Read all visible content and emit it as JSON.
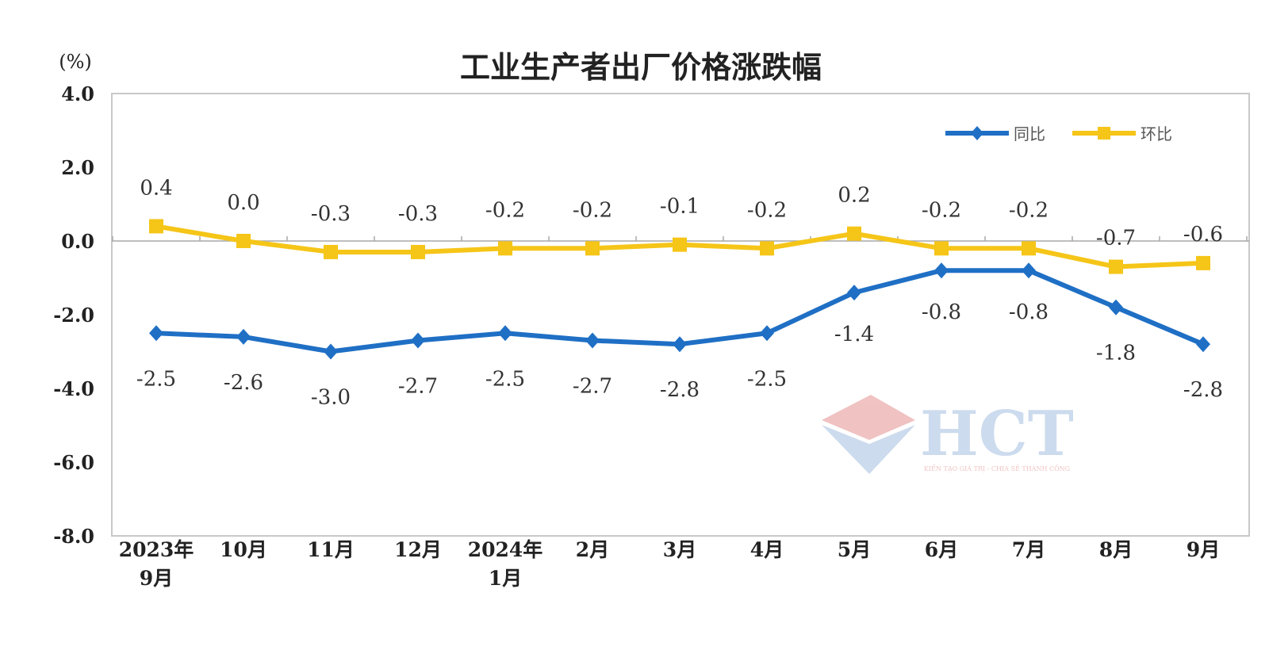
{
  "chart_data": {
    "type": "line",
    "title": "工业生产者出厂价格涨跌幅",
    "ylabel": "(%)",
    "xlabel": "",
    "ylim": [
      -8.0,
      4.0
    ],
    "yticks": [
      "4.0",
      "2.0",
      "0.0",
      "-2.0",
      "-4.0",
      "-6.0",
      "-8.0"
    ],
    "ytick_values": [
      4,
      2,
      0,
      -2,
      -4,
      -6,
      -8
    ],
    "categories": [
      [
        "2023年",
        "9月"
      ],
      [
        "10月"
      ],
      [
        "11月"
      ],
      [
        "12月"
      ],
      [
        "2024年",
        "1月"
      ],
      [
        "2月"
      ],
      [
        "3月"
      ],
      [
        "4月"
      ],
      [
        "5月"
      ],
      [
        "6月"
      ],
      [
        "7月"
      ],
      [
        "8月"
      ],
      [
        "9月"
      ]
    ],
    "series": [
      {
        "name": "同比",
        "color": "#1f6fc5",
        "marker": "diamond",
        "values": [
          -2.5,
          -2.6,
          -3.0,
          -2.7,
          -2.5,
          -2.7,
          -2.8,
          -2.5,
          -1.4,
          -0.8,
          -0.8,
          -1.8,
          -2.8
        ],
        "labels": [
          "-2.5",
          "-2.6",
          "-3.0",
          "-2.7",
          "-2.5",
          "-2.7",
          "-2.8",
          "-2.5",
          "-1.4",
          "-0.8",
          "-0.8",
          "-1.8",
          "-2.8"
        ]
      },
      {
        "name": "环比",
        "color": "#f5c518",
        "marker": "square",
        "values": [
          0.4,
          0.0,
          -0.3,
          -0.3,
          -0.2,
          -0.2,
          -0.1,
          -0.2,
          0.2,
          -0.2,
          -0.2,
          -0.7,
          -0.6
        ],
        "labels": [
          "0.4",
          "0.0",
          "-0.3",
          "-0.3",
          "-0.2",
          "-0.2",
          "-0.1",
          "-0.2",
          "0.2",
          "-0.2",
          "-0.2",
          "-0.7",
          "-0.6"
        ]
      }
    ],
    "legend": "top-right",
    "grid": false
  },
  "watermark": {
    "brand": "HCT",
    "tagline": "KIẾN TẠO GIÁ TRỊ - CHIA SẺ THÀNH CÔNG"
  }
}
